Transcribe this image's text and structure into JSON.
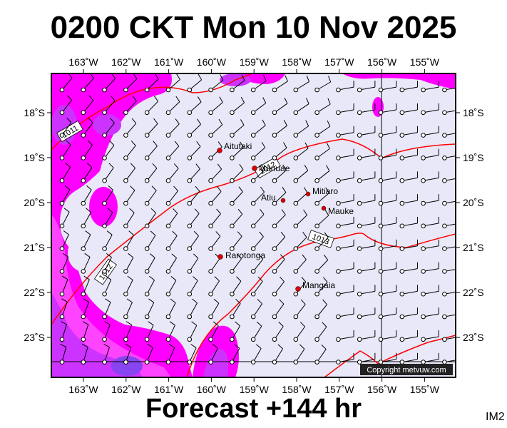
{
  "title": "0200 CKT Mon 10 Nov 2025",
  "footer": "Forecast +144 hr",
  "image_code": "IM2",
  "copyright": "Copyright metvuw.com",
  "lon_labels": [
    "163˚W",
    "162˚W",
    "161˚W",
    "160˚W",
    "159˚W",
    "158˚W",
    "157˚W",
    "156˚W",
    "155˚W"
  ],
  "lat_labels": [
    "18˚S",
    "19˚S",
    "20˚S",
    "21˚S",
    "22˚S",
    "23˚S"
  ],
  "isobars": [
    "1011",
    "1012",
    "1012",
    "1013"
  ],
  "places": [
    {
      "name": "Aitutaki"
    },
    {
      "name": "Manuae"
    },
    {
      "name": "Atiu"
    },
    {
      "name": "Mitiaro"
    },
    {
      "name": "Mauke"
    },
    {
      "name": "Rarotonga"
    },
    {
      "name": "Mangaia"
    }
  ],
  "colors": {
    "background": "#e8e8f8",
    "rain_light": "#ff00ff",
    "rain_mid": "#cc33ff",
    "rain_heavy": "#8844ee",
    "isobar": "#ff0000",
    "place_dot": "#dd0000"
  }
}
